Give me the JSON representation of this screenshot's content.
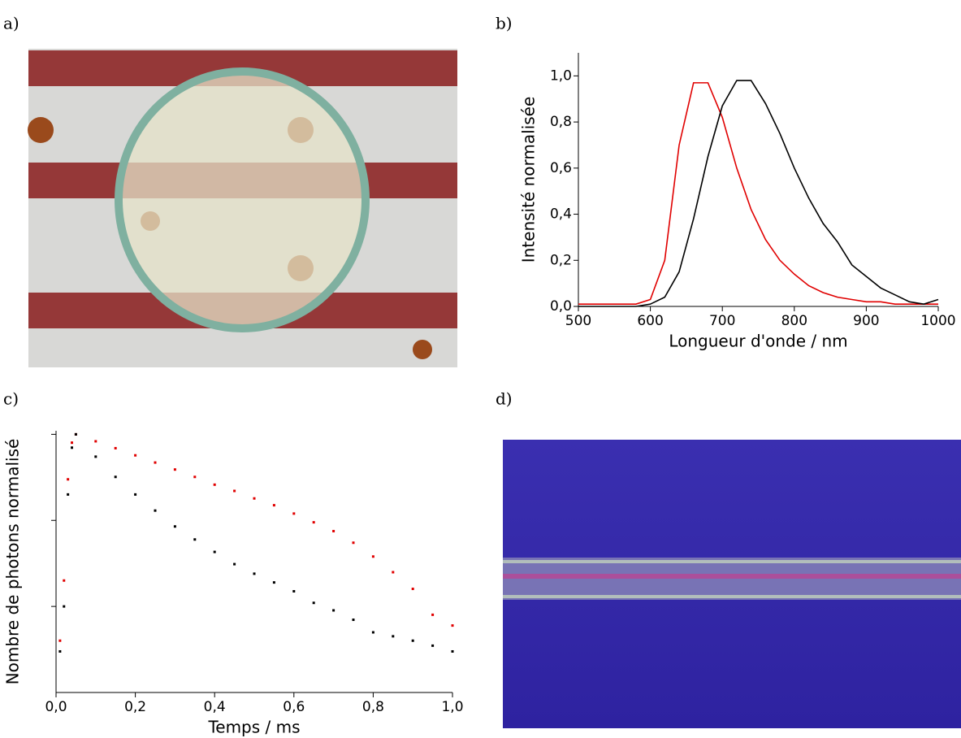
{
  "panel_labels": [
    "a)",
    "b)",
    "c)",
    "d)"
  ],
  "chart_data": [
    {
      "type": "line",
      "xlabel": "Longueur d'onde / nm",
      "ylabel": "Intensité normalisée",
      "x": [
        500,
        520,
        540,
        560,
        580,
        600,
        620,
        640,
        660,
        680,
        700,
        720,
        740,
        760,
        780,
        800,
        820,
        840,
        860,
        880,
        900,
        920,
        940,
        960,
        980,
        1000
      ],
      "series": [
        {
          "color": "#e00000",
          "values": [
            0.01,
            0.01,
            0.01,
            0.01,
            0.01,
            0.03,
            0.2,
            0.7,
            0.97,
            0.97,
            0.82,
            0.6,
            0.42,
            0.29,
            0.2,
            0.14,
            0.09,
            0.06,
            0.04,
            0.03,
            0.02,
            0.02,
            0.01,
            0.01,
            0.01,
            0.01
          ]
        },
        {
          "color": "#000000",
          "values": [
            0,
            0,
            0,
            0,
            0,
            0.01,
            0.04,
            0.15,
            0.38,
            0.65,
            0.87,
            0.98,
            0.98,
            0.88,
            0.75,
            0.6,
            0.47,
            0.36,
            0.28,
            0.18,
            0.13,
            0.08,
            0.05,
            0.02,
            0.01,
            0.03
          ]
        }
      ],
      "xlim": [
        500,
        1000
      ],
      "xticks": [
        500,
        600,
        700,
        800,
        900,
        1000
      ],
      "ylim": [
        0,
        1.1
      ],
      "yticks": [
        {
          "value": 0,
          "label": "0,0"
        },
        {
          "value": 0.2,
          "label": "0,2"
        },
        {
          "value": 0.4,
          "label": "0,4"
        },
        {
          "value": 0.6,
          "label": "0,6"
        },
        {
          "value": 0.8,
          "label": "0,8"
        },
        {
          "value": 1.0,
          "label": "1,0"
        }
      ]
    },
    {
      "type": "scatter",
      "xlabel": "Temps / ms",
      "ylabel": "Nombre de photons normalisé",
      "log_y": true,
      "ytick_labels": false,
      "x": [
        0.01,
        0.02,
        0.03,
        0.04,
        0.05,
        0.1,
        0.15,
        0.2,
        0.25,
        0.3,
        0.35,
        0.4,
        0.45,
        0.5,
        0.55,
        0.6,
        0.65,
        0.7,
        0.75,
        0.8,
        0.85,
        0.9,
        0.95,
        1.0
      ],
      "series": [
        {
          "color": "#e00000",
          "values": [
            0.004,
            0.02,
            0.3,
            0.8,
            1.0,
            0.83,
            0.69,
            0.57,
            0.47,
            0.39,
            0.32,
            0.26,
            0.22,
            0.18,
            0.15,
            0.12,
            0.095,
            0.075,
            0.055,
            0.038,
            0.025,
            0.016,
            0.008,
            0.006
          ]
        },
        {
          "color": "#000000",
          "values": [
            0.003,
            0.01,
            0.2,
            0.7,
            1.0,
            0.55,
            0.32,
            0.2,
            0.13,
            0.085,
            0.06,
            0.043,
            0.031,
            0.024,
            0.019,
            0.015,
            0.011,
            0.009,
            0.007,
            0.005,
            0.0045,
            0.004,
            0.0035,
            0.003
          ]
        }
      ],
      "xlim": [
        0,
        1.0
      ],
      "xticks": [
        {
          "value": 0,
          "label": "0,0"
        },
        {
          "value": 0.2,
          "label": "0,2"
        },
        {
          "value": 0.4,
          "label": "0,4"
        },
        {
          "value": 0.6,
          "label": "0,6"
        },
        {
          "value": 0.8,
          "label": "0,8"
        },
        {
          "value": 1.0,
          "label": "1,0"
        }
      ],
      "ylim": [
        0.001,
        1.1
      ],
      "yticks": [
        0.01,
        0.1,
        1
      ]
    }
  ]
}
